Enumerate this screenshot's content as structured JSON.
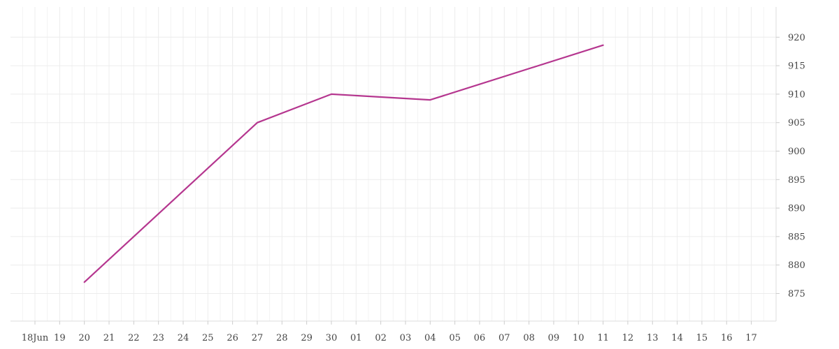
{
  "chart_data": {
    "type": "line",
    "title": "",
    "xlabel": "",
    "ylabel": "",
    "x_axis": {
      "ticks": [
        "18Jun",
        "19",
        "20",
        "21",
        "22",
        "23",
        "24",
        "25",
        "26",
        "27",
        "28",
        "29",
        "30",
        "01",
        "02",
        "03",
        "04",
        "05",
        "06",
        "07",
        "08",
        "09",
        "10",
        "11",
        "12",
        "13",
        "14",
        "15",
        "16",
        "17"
      ],
      "start_date": "2023-06-18",
      "end_date": "2023-07-17"
    },
    "y_axis": {
      "position": "right",
      "ticks": [
        875,
        880,
        885,
        890,
        895,
        900,
        905,
        910,
        915,
        920
      ],
      "ylim": [
        870,
        922
      ]
    },
    "grid": true,
    "series": [
      {
        "color": "#b5368f",
        "points": [
          {
            "x": "2023-06-20",
            "y": 877
          },
          {
            "x": "2023-06-27",
            "y": 905
          },
          {
            "x": "2023-06-30",
            "y": 910
          },
          {
            "x": "2023-07-04",
            "y": 909
          },
          {
            "x": "2023-07-11",
            "y": 918.6
          }
        ]
      }
    ]
  }
}
